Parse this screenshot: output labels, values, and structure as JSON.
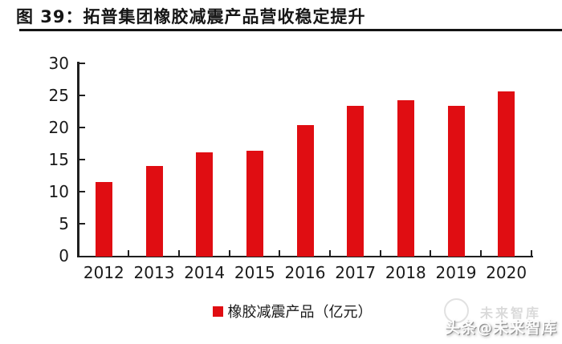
{
  "figure": {
    "title": "图 39：拓普集团橡胶减震产品营收稳定提升"
  },
  "chart_data": {
    "type": "bar",
    "title": "拓普集团橡胶减震产品营收稳定提升",
    "categories": [
      "2012",
      "2013",
      "2014",
      "2015",
      "2016",
      "2017",
      "2018",
      "2019",
      "2020"
    ],
    "series": [
      {
        "name": "橡胶减震产品（亿元）",
        "values": [
          11.5,
          14.0,
          16.1,
          16.3,
          20.4,
          23.3,
          24.3,
          23.4,
          25.6
        ]
      }
    ],
    "xlabel": "",
    "ylabel": "",
    "ylim": [
      0,
      30
    ],
    "yticks": [
      0,
      5,
      10,
      15,
      20,
      25,
      30
    ],
    "grid": false,
    "legend_position": "bottom-center",
    "bar_color": "#e00d12"
  },
  "watermark": {
    "text": "头条@未来智库",
    "ghost_text": "未来智库"
  },
  "colors": {
    "bar": "#e00d12",
    "axis": "#1f1f1f",
    "text": "#1a1a1a",
    "divider": "#141414"
  }
}
